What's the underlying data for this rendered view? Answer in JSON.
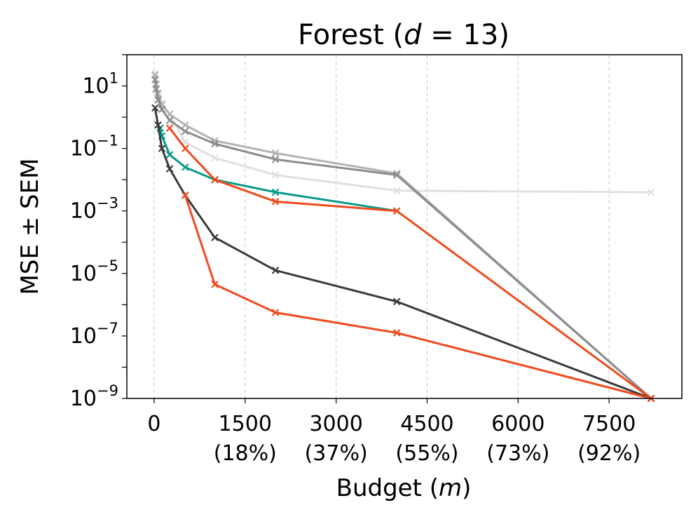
{
  "chart_data": {
    "type": "line",
    "title_prefix": "Forest (",
    "title_var": "d",
    "title_suffix": " = 13)",
    "xlabel_prefix": "Budget (",
    "xlabel_var": "m",
    "xlabel_suffix": ")",
    "ylabel": "MSE ± SEM",
    "yscale": "log",
    "xlim": [
      -450,
      8700
    ],
    "ylim_exp": [
      -9,
      2
    ],
    "grid": "x-dashed",
    "marker": "x",
    "xticks": [
      {
        "value": 0,
        "label": "0",
        "sub": ""
      },
      {
        "value": 1500,
        "label": "1500",
        "sub": "(18%)"
      },
      {
        "value": 3000,
        "label": "3000",
        "sub": "(37%)"
      },
      {
        "value": 4500,
        "label": "4500",
        "sub": "(55%)"
      },
      {
        "value": 6000,
        "label": "6000",
        "sub": "(73%)"
      },
      {
        "value": 7500,
        "label": "7500",
        "sub": "(92%)"
      }
    ],
    "yticks": [
      {
        "exp": 1,
        "base": "10",
        "sup": "1"
      },
      {
        "exp": -1,
        "base": "10",
        "sup": "−1"
      },
      {
        "exp": -3,
        "base": "10",
        "sup": "−3"
      },
      {
        "exp": -5,
        "base": "10",
        "sup": "−5"
      },
      {
        "exp": -7,
        "base": "10",
        "sup": "−7"
      },
      {
        "exp": -9,
        "base": "10",
        "sup": "−9"
      }
    ],
    "series": [
      {
        "name": "light-gray",
        "color": "#e0e0e0",
        "x": [
          16,
          32,
          64,
          128,
          256,
          512,
          1000,
          2000,
          4000,
          8192
        ],
        "logy": [
          1.4,
          1.1,
          0.8,
          0.45,
          0.1,
          -0.8,
          -1.3,
          -1.85,
          -2.35,
          -2.4
        ]
      },
      {
        "name": "mid-gray",
        "color": "#b3b3b3",
        "x": [
          16,
          32,
          64,
          128,
          256,
          512,
          1000,
          2000,
          4000,
          8192
        ],
        "logy": [
          1.35,
          1.05,
          0.75,
          0.4,
          0.1,
          -0.25,
          -0.75,
          -1.15,
          -1.8,
          -9.0
        ]
      },
      {
        "name": "gray",
        "color": "#8c8c8c",
        "x": [
          16,
          32,
          64,
          128,
          256,
          512,
          1000,
          2000,
          4000,
          8192
        ],
        "logy": [
          1.2,
          0.9,
          0.55,
          0.25,
          -0.1,
          -0.45,
          -0.85,
          -1.35,
          -1.85,
          -9.0
        ]
      },
      {
        "name": "teal",
        "color": "#0a9a8a",
        "x": [
          100,
          128,
          256,
          512,
          1000,
          2000,
          4000
        ],
        "logy": [
          -0.35,
          -0.6,
          -1.2,
          -1.6,
          -2.0,
          -2.4,
          -3.0
        ]
      },
      {
        "name": "orange-upper",
        "color": "#ef4a1e",
        "x": [
          256,
          512,
          1000,
          2000,
          4000,
          8192
        ],
        "logy": [
          -0.35,
          -1.0,
          -2.0,
          -2.7,
          -3.0,
          -9.0
        ]
      },
      {
        "name": "dark",
        "color": "#3a3a3a",
        "x": [
          16,
          64,
          128,
          256,
          512,
          1000,
          2000,
          4000,
          8192
        ],
        "logy": [
          0.3,
          -0.25,
          -1.0,
          -1.65,
          -2.5,
          -3.85,
          -4.9,
          -5.9,
          -9.0
        ]
      },
      {
        "name": "orange-lower",
        "color": "#ef4a1e",
        "x": [
          512,
          1000,
          2000,
          4000,
          8192
        ],
        "logy": [
          -2.5,
          -5.35,
          -6.25,
          -6.9,
          -9.0
        ]
      }
    ]
  }
}
